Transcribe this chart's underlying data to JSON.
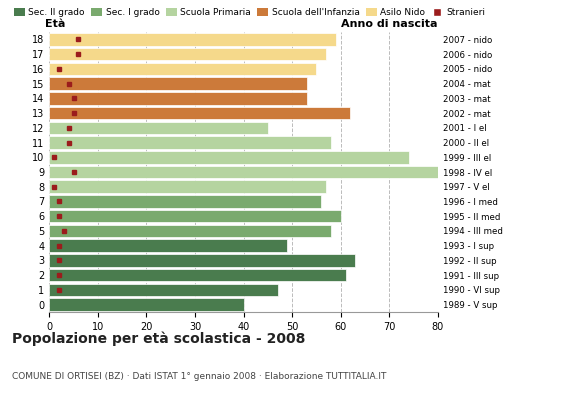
{
  "ages": [
    18,
    17,
    16,
    15,
    14,
    13,
    12,
    11,
    10,
    9,
    8,
    7,
    6,
    5,
    4,
    3,
    2,
    1,
    0
  ],
  "years": [
    "1989 - V sup",
    "1990 - VI sup",
    "1991 - III sup",
    "1992 - II sup",
    "1993 - I sup",
    "1994 - III med",
    "1995 - II med",
    "1996 - I med",
    "1997 - V el",
    "1998 - IV el",
    "1999 - III el",
    "2000 - II el",
    "2001 - I el",
    "2002 - mat",
    "2003 - mat",
    "2004 - mat",
    "2005 - nido",
    "2006 - nido",
    "2007 - nido"
  ],
  "bar_values": [
    40,
    47,
    61,
    63,
    49,
    58,
    60,
    56,
    57,
    80,
    74,
    58,
    45,
    62,
    53,
    53,
    55,
    57,
    59
  ],
  "stranieri_values": [
    0,
    2,
    2,
    2,
    2,
    3,
    2,
    2,
    1,
    5,
    1,
    4,
    4,
    5,
    5,
    4,
    2,
    6,
    6
  ],
  "bar_colors": [
    "#4a7c4e",
    "#4a7c4e",
    "#4a7c4e",
    "#4a7c4e",
    "#4a7c4e",
    "#7aaa6e",
    "#7aaa6e",
    "#7aaa6e",
    "#b5d4a0",
    "#b5d4a0",
    "#b5d4a0",
    "#b5d4a0",
    "#b5d4a0",
    "#cc7a3a",
    "#cc7a3a",
    "#cc7a3a",
    "#f5d98b",
    "#f5d98b",
    "#f5d98b"
  ],
  "legend_labels": [
    "Sec. II grado",
    "Sec. I grado",
    "Scuola Primaria",
    "Scuola dell'Infanzia",
    "Asilo Nido",
    "Stranieri"
  ],
  "legend_colors": [
    "#4a7c4e",
    "#7aaa6e",
    "#b5d4a0",
    "#cc7a3a",
    "#f5d98b",
    "#9b1c1c"
  ],
  "stranieri_color": "#9b1c1c",
  "title": "Popolazione per età scolastica - 2008",
  "subtitle": "COMUNE DI ORTISEI (BZ) · Dati ISTAT 1° gennaio 2008 · Elaborazione TUTTITALIA.IT",
  "ylabel_eta": "Età",
  "ylabel_anno": "Anno di nascita",
  "xlim": [
    0,
    80
  ],
  "xticks": [
    0,
    10,
    20,
    30,
    40,
    50,
    60,
    70,
    80
  ],
  "bar_height": 0.85,
  "background_color": "#ffffff",
  "grid_color": "#bbbbbb"
}
